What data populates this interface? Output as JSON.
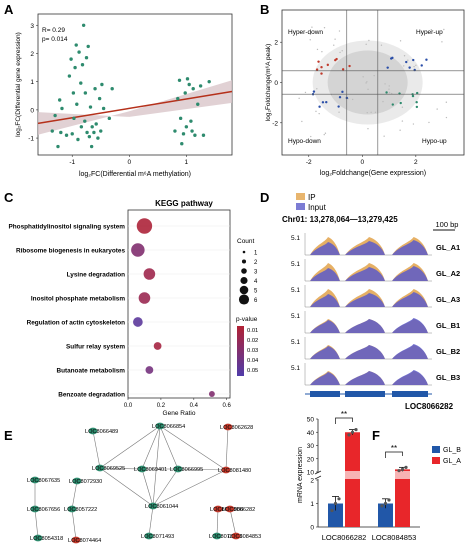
{
  "panels": {
    "A": {
      "letter": "A",
      "stats": [
        "R= 0.29",
        "p= 0.014"
      ],
      "xlabel": "log₂FC(Differential m⁶A methylation)",
      "ylabel": "log₂FC(Differential gene expression)",
      "xticks": [
        "-1",
        "0",
        "1"
      ],
      "yticks": [
        "3",
        "2",
        "1",
        "0",
        "-1"
      ]
    },
    "B": {
      "letter": "B",
      "quadrants": [
        "Hyper-down",
        "Hyper-up",
        "Hypo-down",
        "Hypo-up"
      ],
      "xlabel": "log₂Foldchange(Gene expression)",
      "ylabel": "log₂Foldchange(m⁶A peak)",
      "xticks": [
        "-2",
        "0",
        "2"
      ],
      "yticks": [
        "2",
        "0",
        "-2"
      ]
    },
    "C": {
      "letter": "C",
      "title": "KEGG pathway",
      "xlabel": "Gene Ratio",
      "xticks": [
        "0.0",
        "0.2",
        "0.4",
        "0.6"
      ],
      "count_title": "Count",
      "count_labels": [
        "1",
        "2",
        "3",
        "4",
        "5",
        "6"
      ],
      "pvalue_title": "p-value",
      "pvalue_labels": [
        "0.01",
        "0.02",
        "0.03",
        "0.04",
        "0.05"
      ]
    },
    "D": {
      "letter": "D",
      "legend": [
        "IP",
        "Input"
      ],
      "coords": "Chr01: 13,278,064—13,279,425",
      "scale": "100 bp",
      "gene": "LOC8066282",
      "tracks": [
        {
          "name": "GL_A1",
          "max": "5.1"
        },
        {
          "name": "GL_A2",
          "max": "5.1"
        },
        {
          "name": "GL_A3",
          "max": "5.1"
        },
        {
          "name": "GL_B1",
          "max": "5.1"
        },
        {
          "name": "GL_B2",
          "max": "5.1"
        },
        {
          "name": "GL_B3",
          "max": "5.1"
        }
      ]
    },
    "E": {
      "letter": "E"
    },
    "F": {
      "letter": "F",
      "ylabel": "mRNA expression",
      "sig": [
        "**",
        "**"
      ],
      "legend": [
        "GL_B",
        "GL_A"
      ],
      "yticks_low": [
        "0",
        "1",
        "2"
      ],
      "yticks_high": [
        "10",
        "20",
        "30",
        "40",
        "50"
      ]
    }
  },
  "colors": {
    "green": "#2e8b6e",
    "red": "#c0392b",
    "blue": "#2a4ea8",
    "trend": "#b5301a",
    "ci": "#d9c5c9",
    "ip": "#e2a24a",
    "input": "#5b5bc9",
    "bar_b": "#2157a8",
    "bar_a": "#e8262a"
  },
  "chart_data": [
    {
      "panel": "A",
      "type": "scatter",
      "title": "",
      "xlabel": "log₂FC(Differential m⁶A methylation)",
      "ylabel": "log₂FC(Differential gene expression)",
      "xlim": [
        -1.6,
        1.8
      ],
      "ylim": [
        -1.6,
        3.4
      ],
      "trend": {
        "x": [
          -1.6,
          1.8
        ],
        "y": [
          -0.48,
          0.65
        ]
      },
      "points": [
        [
          -1.35,
          -0.75
        ],
        [
          -1.3,
          -0.2
        ],
        [
          -1.25,
          -1.3
        ],
        [
          -1.22,
          0.35
        ],
        [
          -1.2,
          -0.8
        ],
        [
          -1.18,
          0.05
        ],
        [
          -1.1,
          -0.9
        ],
        [
          -1.05,
          1.2
        ],
        [
          -1.02,
          1.8
        ],
        [
          -1.0,
          -0.85
        ],
        [
          -0.98,
          0.6
        ],
        [
          -0.97,
          -0.3
        ],
        [
          -0.95,
          1.5
        ],
        [
          -0.93,
          2.3
        ],
        [
          -0.92,
          0.2
        ],
        [
          -0.9,
          -1.05
        ],
        [
          -0.88,
          2.05
        ],
        [
          -0.85,
          0.95
        ],
        [
          -0.84,
          -0.6
        ],
        [
          -0.82,
          1.6
        ],
        [
          -0.8,
          3.0
        ],
        [
          -0.78,
          -0.4
        ],
        [
          -0.77,
          0.6
        ],
        [
          -0.75,
          1.85
        ],
        [
          -0.74,
          -0.8
        ],
        [
          -0.72,
          2.25
        ],
        [
          -0.7,
          -0.95
        ],
        [
          -0.68,
          0.1
        ],
        [
          -0.66,
          -1.3
        ],
        [
          -0.65,
          -0.6
        ],
        [
          -0.62,
          -0.8
        ],
        [
          -0.6,
          0.75
        ],
        [
          -0.58,
          -0.5
        ],
        [
          -0.55,
          -1.0
        ],
        [
          -0.52,
          0.4
        ],
        [
          -0.5,
          -0.75
        ],
        [
          -0.48,
          0.9
        ],
        [
          -0.45,
          0.05
        ],
        [
          -0.35,
          -0.3
        ],
        [
          -0.3,
          0.75
        ],
        [
          0.8,
          -0.75
        ],
        [
          0.85,
          0.4
        ],
        [
          0.88,
          1.05
        ],
        [
          0.9,
          -0.3
        ],
        [
          0.92,
          -1.2
        ],
        [
          0.95,
          -0.85
        ],
        [
          0.98,
          0.6
        ],
        [
          1.0,
          -0.6
        ],
        [
          1.02,
          1.1
        ],
        [
          1.05,
          0.9
        ],
        [
          1.08,
          -0.4
        ],
        [
          1.1,
          -0.75
        ],
        [
          1.12,
          0.75
        ],
        [
          1.15,
          -0.9
        ],
        [
          1.2,
          0.2
        ],
        [
          1.25,
          0.85
        ],
        [
          1.3,
          -0.9
        ],
        [
          1.4,
          1.0
        ]
      ]
    },
    {
      "panel": "C",
      "type": "scatter",
      "title": "KEGG pathway",
      "xlabel": "Gene Ratio",
      "xlim": [
        0.0,
        0.62
      ],
      "categories": [
        "Phosphatidylinositol signaling system",
        "Ribosome biogenesis in eukaryotes",
        "Lysine degradation",
        "Inositol phosphate metabolism",
        "Regulation of actin cytoskeleton",
        "Sulfur relay system",
        "Butanoate metabolism",
        "Benzoate degradation"
      ],
      "gene_ratio": [
        0.1,
        0.06,
        0.13,
        0.1,
        0.06,
        0.18,
        0.13,
        0.51
      ],
      "count": [
        6,
        5,
        4,
        4,
        3,
        2,
        2,
        1
      ],
      "p_value": [
        0.012,
        0.03,
        0.018,
        0.02,
        0.045,
        0.015,
        0.035,
        0.03
      ]
    },
    {
      "panel": "E",
      "type": "network",
      "nodes": [
        {
          "id": "LOC8066854",
          "color": "green"
        },
        {
          "id": "LOC8062628",
          "color": "red"
        },
        {
          "id": "LOC8066489",
          "color": "green"
        },
        {
          "id": "LOC8069525",
          "color": "green"
        },
        {
          "id": "LOC8069401",
          "color": "green"
        },
        {
          "id": "LOC8066995",
          "color": "green"
        },
        {
          "id": "LOC8081480",
          "color": "red"
        },
        {
          "id": "LOC8067635",
          "color": "green"
        },
        {
          "id": "LOC8072930",
          "color": "green"
        },
        {
          "id": "LOC8061044",
          "color": "green"
        },
        {
          "id": "LOC8067656",
          "color": "green"
        },
        {
          "id": "LOC8057222",
          "color": "green"
        },
        {
          "id": "LOC8069988",
          "color": "red"
        },
        {
          "id": "LOC8066282",
          "color": "red"
        },
        {
          "id": "LOC8054318",
          "color": "green"
        },
        {
          "id": "LOC8074464",
          "color": "red"
        },
        {
          "id": "LOC8071493",
          "color": "green"
        },
        {
          "id": "LOC8078886",
          "color": "green"
        },
        {
          "id": "LOC8084853",
          "color": "red"
        }
      ]
    },
    {
      "panel": "F",
      "type": "bar",
      "ylabel": "mRNA expression",
      "categories": [
        "LOC8066282",
        "LOC8084853"
      ],
      "series": [
        {
          "name": "GL_B",
          "values": [
            1.0,
            1.0
          ],
          "err": [
            0.3,
            0.2
          ],
          "points": [
            [
              0.7,
              1.0,
              1.2
            ],
            [
              0.9,
              1.0,
              1.15
            ]
          ]
        },
        {
          "name": "GL_A",
          "values": [
            40.0,
            12.0
          ],
          "err": [
            2.0,
            1.5
          ],
          "points": [
            [
              38,
              40,
              42
            ],
            [
              11,
              12,
              13.5
            ]
          ]
        }
      ]
    }
  ]
}
